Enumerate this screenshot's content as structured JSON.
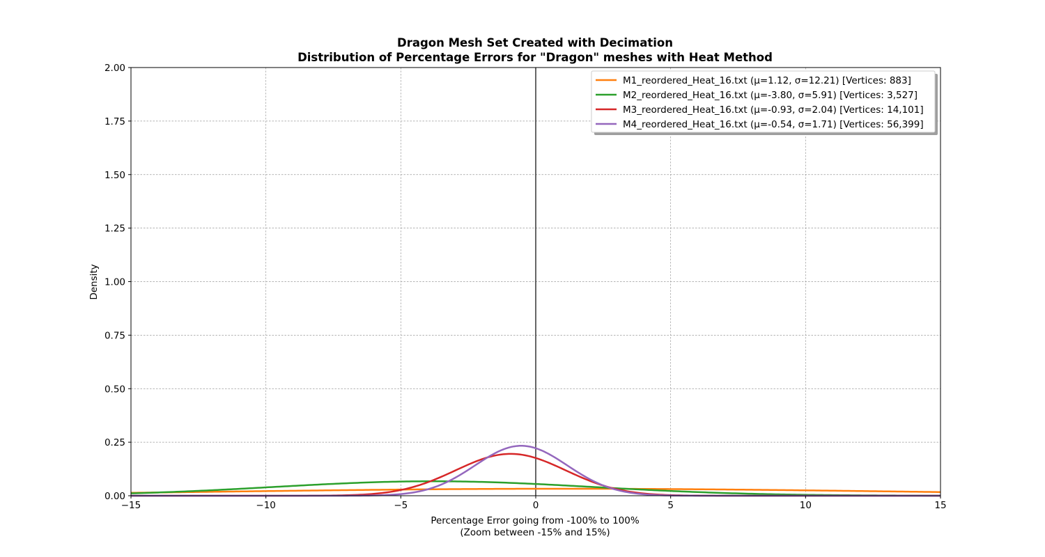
{
  "chart_data": {
    "type": "line",
    "title": "Dragon Mesh Set Created with Decimation",
    "subtitle": "Distribution of Percentage Errors for \"Dragon\" meshes with Heat Method",
    "xlabel": "Percentage Error going from -100% to 100%",
    "xlabel_sub": "(Zoom between -15% and 15%)",
    "ylabel": "Density",
    "xlim": [
      -15,
      15
    ],
    "ylim": [
      0,
      2.0
    ],
    "x_ticks": [
      -15,
      -10,
      -5,
      0,
      5,
      10,
      15
    ],
    "x_tick_labels": [
      "−15",
      "−10",
      "−5",
      "0",
      "5",
      "10",
      "15"
    ],
    "y_ticks": [
      0,
      0.25,
      0.5,
      0.75,
      1.0,
      1.25,
      1.5,
      1.75,
      2.0
    ],
    "y_tick_labels": [
      "0.00",
      "0.25",
      "0.50",
      "0.75",
      "1.00",
      "1.25",
      "1.50",
      "1.75",
      "2.00"
    ],
    "grid": true,
    "grid_style": "dashed",
    "vertical_reference_line_x": 0,
    "legend_position": "top-right",
    "series": [
      {
        "name": "M1_reordered_Heat_16.txt (μ=1.12, σ=12.21) [Vertices: 883]",
        "color": "#ff7f0e",
        "mean": 1.12,
        "std": 12.21
      },
      {
        "name": "M2_reordered_Heat_16.txt (μ=-3.80, σ=5.91) [Vertices: 3,527]",
        "color": "#2ca02c",
        "mean": -3.8,
        "std": 5.91
      },
      {
        "name": "M3_reordered_Heat_16.txt (μ=-0.93, σ=2.04) [Vertices: 14,101]",
        "color": "#d62728",
        "mean": -0.93,
        "std": 2.04
      },
      {
        "name": "M4_reordered_Heat_16.txt (μ=-0.54, σ=1.71) [Vertices: 56,399]",
        "color": "#9467bd",
        "mean": -0.54,
        "std": 1.71
      }
    ]
  }
}
